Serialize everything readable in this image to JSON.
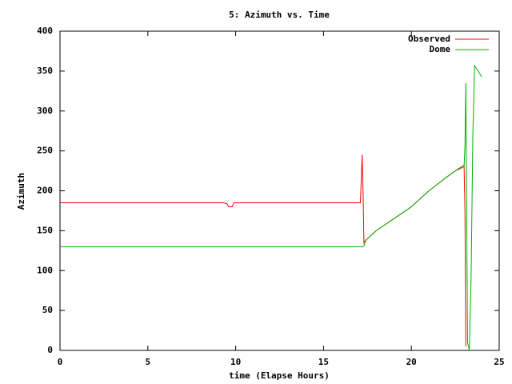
{
  "chart_data": {
    "type": "line",
    "title": "5: Azimuth vs. Time",
    "x_label": "time (Elapse Hours)",
    "y_label": "Azimuth",
    "x": [
      0,
      9.3,
      9.5,
      9.6,
      9.8,
      9.9,
      17.1,
      17.2,
      17.25,
      17.3,
      17.4,
      18,
      19,
      20,
      21,
      22,
      22.5,
      23,
      23.05,
      23.1,
      23.2,
      23.3,
      23.4,
      23.5,
      23.6,
      24
    ],
    "series": [
      {
        "name": "Observed",
        "color": "#ff0000",
        "values": [
          185,
          185,
          184,
          180,
          180,
          185,
          185,
          245,
          200,
          135,
          138,
          150,
          165,
          180,
          200,
          217,
          225,
          232,
          176,
          5,
          null,
          null,
          null,
          null,
          null,
          null
        ]
      },
      {
        "name": "Dome",
        "color": "#00b000",
        "values": [
          130,
          130,
          130,
          130,
          130,
          130,
          130,
          130,
          130,
          131,
          138,
          150,
          165,
          180,
          200,
          217,
          225,
          230,
          255,
          335,
          10,
          0,
          90,
          270,
          357,
          343
        ]
      }
    ],
    "xlim": [
      0,
      25
    ],
    "xticks": [
      0,
      5,
      10,
      15,
      20,
      25
    ],
    "ylim": [
      0,
      400
    ],
    "yticks": [
      0,
      50,
      100,
      150,
      200,
      250,
      300,
      350,
      400
    ],
    "grid": false,
    "legend": "top-right"
  }
}
